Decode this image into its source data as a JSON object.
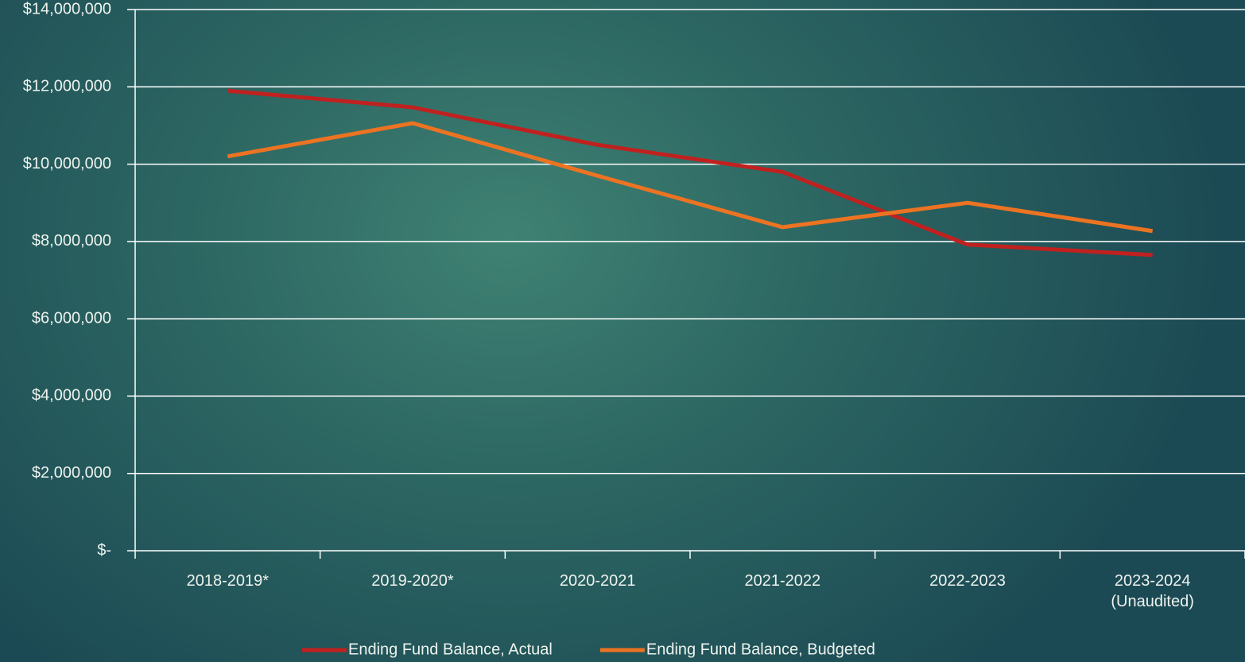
{
  "chart_data": {
    "type": "line",
    "categories": [
      "2018-2019*",
      "2019-2020*",
      "2020-2021",
      "2021-2022",
      "2022-2023",
      "2023-2024\n(Unaudited)"
    ],
    "series": [
      {
        "name": "Ending Fund Balance, Actual",
        "color": "#c0211f",
        "values": [
          11900000,
          11470000,
          10500000,
          9800000,
          7920000,
          7650000
        ]
      },
      {
        "name": "Ending Fund Balance, Budgeted",
        "color": "#ec7322",
        "values": [
          10200000,
          11060000,
          9700000,
          8370000,
          9000000,
          8270000
        ]
      }
    ],
    "ylim": [
      0,
      14000000
    ],
    "yticks": [
      {
        "value": 0,
        "label": "$-"
      },
      {
        "value": 2000000,
        "label": "$2,000,000"
      },
      {
        "value": 4000000,
        "label": "$4,000,000"
      },
      {
        "value": 6000000,
        "label": "$6,000,000"
      },
      {
        "value": 8000000,
        "label": "$8,000,000"
      },
      {
        "value": 10000000,
        "label": "$10,000,000"
      },
      {
        "value": 12000000,
        "label": "$12,000,000"
      },
      {
        "value": 14000000,
        "label": "$14,000,000"
      }
    ],
    "grid": true,
    "legend": "bottom"
  }
}
